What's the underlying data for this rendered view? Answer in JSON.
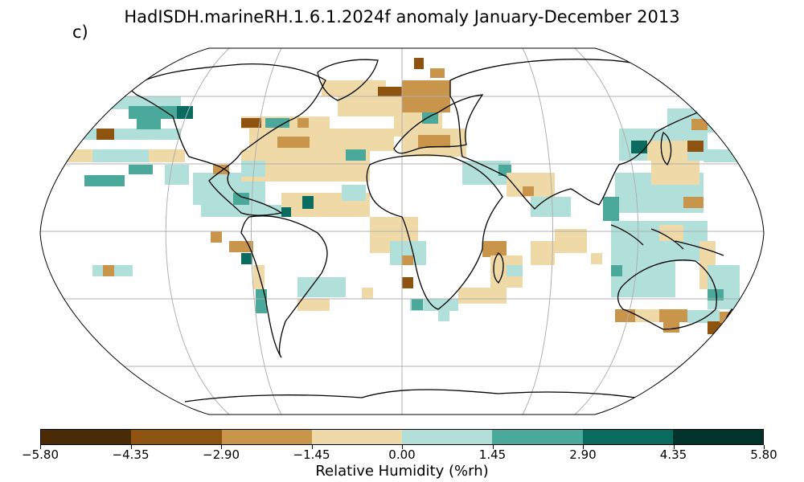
{
  "title": "HadISDH.marineRH.1.6.1.2024f anomaly January-December 2013",
  "panel_label": "c)",
  "colorbar": {
    "label": "Relative Humidity (%rh)",
    "ticks": [
      "−5.80",
      "−4.35",
      "−2.90",
      "−1.45",
      "0.00",
      "1.45",
      "2.90",
      "4.35",
      "5.80"
    ],
    "colors": [
      "#4a2b06",
      "#8e530f",
      "#c9954b",
      "#efd9a6",
      "#b0e0d9",
      "#4aa99a",
      "#0a6b60",
      "#01342c"
    ]
  },
  "map": {
    "projection": "robinson",
    "gridlines": true,
    "coastlines": true
  }
}
